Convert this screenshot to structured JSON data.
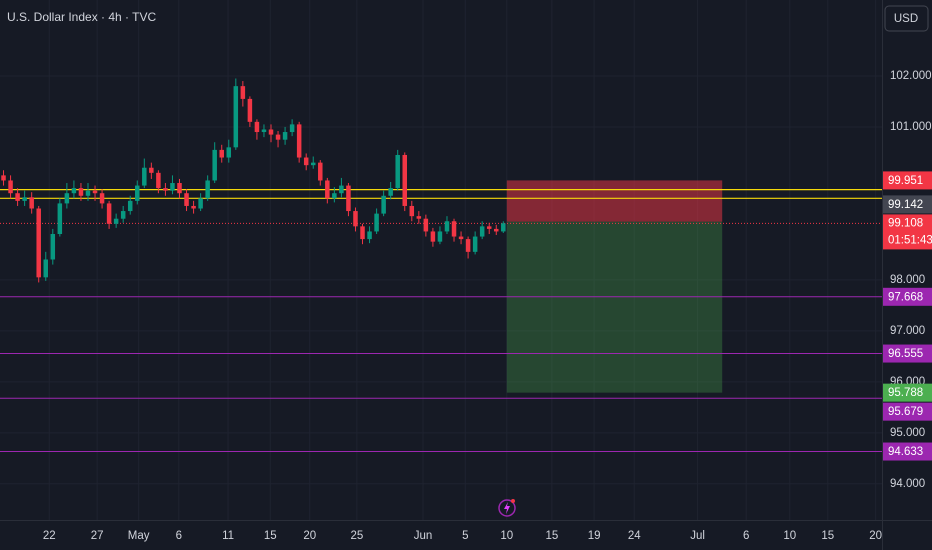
{
  "chart_data": {
    "type": "candlestick",
    "title": "U.S. Dollar Index · 4h · TVC",
    "currency": "USD",
    "up_color": "#089981",
    "down_color": "#f23645",
    "ohlc": [
      [
        100.05,
        100.15,
        99.85,
        99.95
      ],
      [
        99.95,
        100.05,
        99.6,
        99.7
      ],
      [
        99.7,
        99.8,
        99.45,
        99.55
      ],
      [
        99.55,
        99.75,
        99.45,
        99.62
      ],
      [
        99.62,
        99.72,
        99.3,
        99.4
      ],
      [
        99.4,
        99.45,
        97.95,
        98.05
      ],
      [
        98.05,
        98.55,
        97.98,
        98.4
      ],
      [
        98.4,
        99.0,
        98.3,
        98.9
      ],
      [
        98.9,
        99.6,
        98.85,
        99.5
      ],
      [
        99.5,
        99.9,
        99.4,
        99.7
      ],
      [
        99.7,
        99.95,
        99.6,
        99.8
      ],
      [
        99.8,
        99.9,
        99.55,
        99.65
      ],
      [
        99.65,
        99.9,
        99.55,
        99.75
      ],
      [
        99.75,
        99.85,
        99.55,
        99.7
      ],
      [
        99.7,
        99.78,
        99.4,
        99.5
      ],
      [
        99.5,
        99.55,
        99.0,
        99.1
      ],
      [
        99.1,
        99.3,
        99.02,
        99.2
      ],
      [
        99.2,
        99.45,
        99.12,
        99.35
      ],
      [
        99.35,
        99.65,
        99.28,
        99.55
      ],
      [
        99.55,
        99.95,
        99.48,
        99.85
      ],
      [
        99.85,
        100.38,
        99.8,
        100.2
      ],
      [
        100.2,
        100.3,
        99.98,
        100.1
      ],
      [
        100.1,
        100.15,
        99.7,
        99.8
      ],
      [
        99.8,
        99.9,
        99.65,
        99.75
      ],
      [
        99.75,
        100.05,
        99.68,
        99.9
      ],
      [
        99.9,
        99.98,
        99.6,
        99.7
      ],
      [
        99.7,
        99.78,
        99.35,
        99.45
      ],
      [
        99.45,
        99.55,
        99.3,
        99.4
      ],
      [
        99.4,
        99.7,
        99.35,
        99.6
      ],
      [
        99.6,
        100.05,
        99.55,
        99.95
      ],
      [
        99.95,
        100.7,
        99.9,
        100.55
      ],
      [
        100.55,
        100.65,
        100.3,
        100.4
      ],
      [
        100.4,
        100.75,
        100.3,
        100.6
      ],
      [
        100.6,
        101.95,
        100.55,
        101.8
      ],
      [
        101.8,
        101.9,
        101.4,
        101.55
      ],
      [
        101.55,
        101.6,
        101.0,
        101.1
      ],
      [
        101.1,
        101.15,
        100.75,
        100.9
      ],
      [
        100.9,
        101.05,
        100.8,
        100.95
      ],
      [
        100.95,
        101.05,
        100.7,
        100.85
      ],
      [
        100.85,
        100.92,
        100.6,
        100.75
      ],
      [
        100.75,
        101.0,
        100.65,
        100.9
      ],
      [
        100.9,
        101.15,
        100.82,
        101.05
      ],
      [
        101.05,
        101.1,
        100.3,
        100.4
      ],
      [
        100.4,
        100.48,
        100.15,
        100.25
      ],
      [
        100.25,
        100.42,
        100.18,
        100.3
      ],
      [
        100.3,
        100.35,
        99.85,
        99.95
      ],
      [
        99.95,
        100.0,
        99.5,
        99.6
      ],
      [
        99.6,
        99.82,
        99.52,
        99.7
      ],
      [
        99.7,
        100.0,
        99.62,
        99.85
      ],
      [
        99.85,
        99.9,
        99.25,
        99.35
      ],
      [
        99.35,
        99.42,
        98.95,
        99.05
      ],
      [
        99.05,
        99.1,
        98.7,
        98.8
      ],
      [
        98.8,
        99.05,
        98.72,
        98.95
      ],
      [
        98.95,
        99.4,
        98.9,
        99.3
      ],
      [
        99.3,
        99.75,
        99.25,
        99.65
      ],
      [
        99.65,
        99.92,
        99.58,
        99.8
      ],
      [
        99.8,
        100.55,
        99.75,
        100.45
      ],
      [
        100.45,
        100.5,
        99.35,
        99.45
      ],
      [
        99.45,
        99.55,
        99.15,
        99.25
      ],
      [
        99.25,
        99.35,
        99.1,
        99.2
      ],
      [
        99.2,
        99.28,
        98.85,
        98.95
      ],
      [
        98.95,
        99.02,
        98.65,
        98.75
      ],
      [
        98.75,
        99.05,
        98.7,
        98.95
      ],
      [
        98.95,
        99.25,
        98.9,
        99.15
      ],
      [
        99.15,
        99.2,
        98.75,
        98.85
      ],
      [
        98.85,
        98.95,
        98.7,
        98.8
      ],
      [
        98.8,
        98.85,
        98.42,
        98.55
      ],
      [
        98.55,
        98.95,
        98.5,
        98.85
      ],
      [
        98.85,
        99.15,
        98.8,
        99.05
      ],
      [
        99.05,
        99.12,
        98.9,
        99.0
      ],
      [
        99.0,
        99.08,
        98.88,
        98.95
      ],
      [
        98.95,
        99.15,
        98.92,
        99.11
      ]
    ],
    "xlim": [
      0,
      125.3
    ],
    "xticks": [
      {
        "value": 7.0,
        "label": "22"
      },
      {
        "value": 13.8,
        "label": "27"
      },
      {
        "value": 19.7,
        "label": "May"
      },
      {
        "value": 25.4,
        "label": "6"
      },
      {
        "value": 32.4,
        "label": "11"
      },
      {
        "value": 38.4,
        "label": "15"
      },
      {
        "value": 44.0,
        "label": "20"
      },
      {
        "value": 50.7,
        "label": "25"
      },
      {
        "value": 60.1,
        "label": "Jun"
      },
      {
        "value": 66.1,
        "label": "5"
      },
      {
        "value": 72.0,
        "label": "10"
      },
      {
        "value": 78.4,
        "label": "15"
      },
      {
        "value": 84.4,
        "label": "19"
      },
      {
        "value": 90.1,
        "label": "24"
      },
      {
        "value": 99.1,
        "label": "Jul"
      },
      {
        "value": 106.0,
        "label": "6"
      },
      {
        "value": 112.2,
        "label": "10"
      },
      {
        "value": 117.6,
        "label": "15"
      },
      {
        "value": 124.4,
        "label": "20"
      }
    ],
    "ylim": [
      93.29,
      103.49
    ],
    "yticks": [
      {
        "value": 102,
        "label": "102.000"
      },
      {
        "value": 101,
        "label": "101.000"
      },
      {
        "value": 98,
        "label": "98.000"
      },
      {
        "value": 97,
        "label": "97.000"
      },
      {
        "value": 96,
        "label": "96.000"
      },
      {
        "value": 95,
        "label": "95.000"
      },
      {
        "value": 94,
        "label": "94.000"
      }
    ],
    "grid": true,
    "last_price": 99.108,
    "countdown": "01:51:43",
    "hlines": [
      {
        "value": 99.77,
        "color": "#f5d90a"
      },
      {
        "value": 99.6,
        "color": "#f5d90a"
      }
    ],
    "levels": [
      {
        "value": 97.668
      },
      {
        "value": 96.555
      },
      {
        "value": 95.679
      },
      {
        "value": 94.633
      }
    ],
    "level_color": "#9c27b0",
    "position": {
      "stop": 99.951,
      "entry": 99.142,
      "target": 95.788,
      "start": 72.0,
      "end": 102.6,
      "stop_color": "#f23645",
      "entry_color": "#434651",
      "target_color": "#4caf50"
    }
  }
}
